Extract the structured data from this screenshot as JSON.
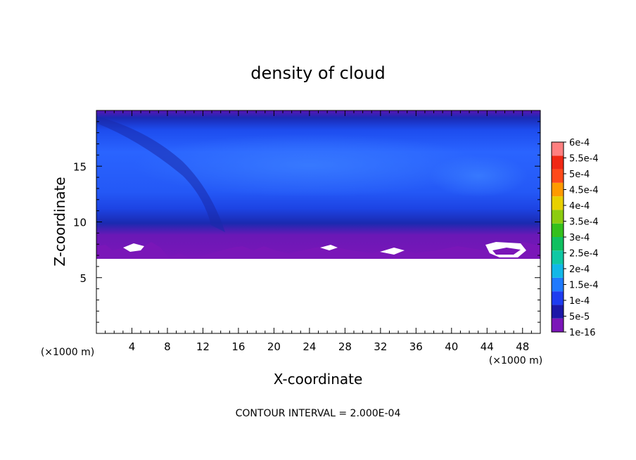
{
  "chart_data": {
    "type": "heatmap",
    "title": "density of cloud",
    "xlabel": "X-coordinate",
    "ylabel": "Z-coordinate",
    "x_unit": "(×1000 m)",
    "y_unit": "(×1000 m)",
    "xlim": [
      0,
      50
    ],
    "ylim": [
      0,
      20
    ],
    "x_ticks": [
      4,
      8,
      12,
      16,
      20,
      24,
      28,
      32,
      36,
      40,
      44,
      48
    ],
    "y_ticks": [
      5,
      10,
      15
    ],
    "contour_interval_text": "CONTOUR INTERVAL = 2.000E-04",
    "colorbar": {
      "levels": [
        "1e-16",
        "5e-5",
        "1e-4",
        "1.5e-4",
        "2e-4",
        "2.5e-4",
        "3e-4",
        "3.5e-4",
        "4e-4",
        "4.5e-4",
        "5e-4",
        "5.5e-4",
        "6e-4"
      ],
      "colors": [
        "#7b16b8",
        "#1c18a8",
        "#1e3cf0",
        "#1f7aff",
        "#12b8e8",
        "#10c8a4",
        "#10c060",
        "#34c01c",
        "#8ccc10",
        "#e8d000",
        "#ff9a00",
        "#ff4a1a",
        "#f02814",
        "#ff8080"
      ]
    },
    "field_bands": [
      {
        "z_range": [
          18.5,
          19.8
        ],
        "value_range": [
          "1e-16",
          "5e-5"
        ]
      },
      {
        "z_range": [
          9.5,
          18.5
        ],
        "value_range": [
          "1e-4",
          "1.5e-4"
        ]
      },
      {
        "z_range": [
          8.5,
          9.5
        ],
        "value_range": [
          "5e-5",
          "1e-4"
        ]
      },
      {
        "z_range": [
          6.6,
          8.5
        ],
        "value_range": [
          "1e-16",
          "5e-5"
        ]
      }
    ]
  }
}
